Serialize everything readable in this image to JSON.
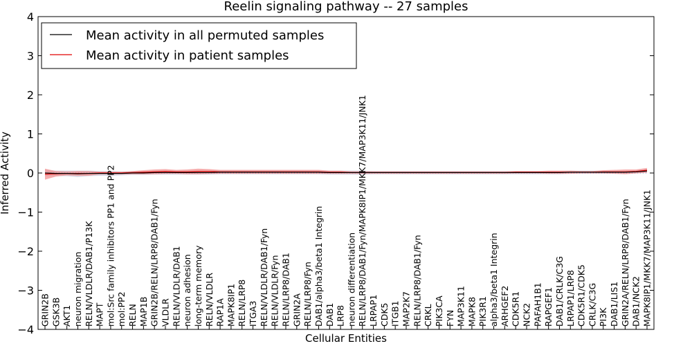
{
  "chart_data": {
    "type": "line",
    "title": "Reelin signaling pathway -- 27 samples",
    "xlabel": "Cellular Entities",
    "ylabel": "Inferred Activity",
    "ylim": [
      -4,
      4
    ],
    "yticks": [
      -4,
      -3,
      -2,
      -1,
      0,
      1,
      2,
      3,
      4
    ],
    "ytick_labels": [
      "−4",
      "−3",
      "−2",
      "−1",
      "0",
      "1",
      "2",
      "3",
      "4"
    ],
    "legend_position": "top-left",
    "categories": [
      "GRIN2B",
      "GSK3B",
      "AKT1",
      "neuron migration",
      "RELN/VLDLR/DAB1/P13K",
      "MAPT",
      "mol:Src family inhibitors PP1 and PP2",
      "mol:PP2",
      "RELN",
      "MAP1B",
      "GRIN2B/RELN/LRP8/DAB1/Fyn",
      "VLDLR",
      "RELN/VLDLR/DAB1",
      "neuron adhesion",
      "long-term memory",
      "RELN/VLDLR",
      "RAP1A",
      "MAPK8IP1",
      "RELN/LRP8",
      "ITGA3",
      "RELN/VLDLR/DAB1/Fyn",
      "RELN/VLDLR/Fyn",
      "RELN/LRP8/DAB1",
      "GRIN2A",
      "RELN/LRP8/Fyn",
      "DAB1/alpha3/beta1 Integrin",
      "DAB1",
      "LRP8",
      "neuron differentiation",
      "RELN/LRP8/DAB1/Fyn/MAPK8IP1/MKK7/MAP3K11/JNK1",
      "LRPAP1",
      "CDK5",
      "ITGB1",
      "MAP2K7",
      "RELN/LRP8/DAB1/Fyn",
      "CRKL",
      "PIK3CA",
      "FYN",
      "MAP3K11",
      "MAPK8",
      "PIK3R1",
      "alpha3/beta1 Integrin",
      "ARHGEF2",
      "CDK5R1",
      "NCK2",
      "PAFAH1B1",
      "RAPGEF1",
      "DAB1/CRLK/C3G",
      "LRPAP1/LRP8",
      "CDK5R1/CDK5",
      "CRLK/C3G",
      "PI3K",
      "DAB1/LIS1",
      "GRIN2A/RELN/LRP8/DAB1/Fyn",
      "DAB1/NCK2",
      "MAPK8IP1/MKK7/MAP3K11/JNK1"
    ],
    "series": [
      {
        "name": "Mean activity in all permuted samples",
        "color": "#000000",
        "band_color": "#c8c8d8",
        "values": [
          0.0,
          -0.01,
          -0.01,
          -0.02,
          -0.01,
          -0.01,
          -0.01,
          -0.01,
          0.0,
          0.0,
          0.01,
          0.01,
          0.01,
          0.01,
          0.01,
          0.01,
          0.02,
          0.02,
          0.02,
          0.02,
          0.02,
          0.02,
          0.02,
          0.02,
          0.02,
          0.02,
          0.01,
          0.01,
          0.01,
          0.01,
          0.01,
          0.01,
          0.01,
          0.01,
          0.01,
          0.01,
          0.01,
          0.01,
          0.01,
          0.01,
          0.01,
          0.01,
          0.01,
          0.01,
          0.01,
          0.01,
          0.01,
          0.01,
          0.02,
          0.02,
          0.02,
          0.02,
          0.02,
          0.02,
          0.03,
          0.05
        ],
        "band": [
          0.08,
          0.07,
          0.07,
          0.08,
          0.07,
          0.06,
          0.06,
          0.05,
          0.05,
          0.05,
          0.05,
          0.05,
          0.05,
          0.05,
          0.05,
          0.05,
          0.05,
          0.05,
          0.05,
          0.05,
          0.05,
          0.05,
          0.05,
          0.05,
          0.05,
          0.05,
          0.05,
          0.05,
          0.05,
          0.05,
          0.04,
          0.04,
          0.04,
          0.04,
          0.04,
          0.04,
          0.04,
          0.04,
          0.04,
          0.04,
          0.04,
          0.04,
          0.04,
          0.04,
          0.04,
          0.04,
          0.04,
          0.04,
          0.04,
          0.04,
          0.04,
          0.04,
          0.04,
          0.04,
          0.04,
          0.05
        ]
      },
      {
        "name": "Mean activity in patient samples",
        "color": "#e00000",
        "band_color": "#f28c8c",
        "values": [
          -0.03,
          -0.02,
          -0.01,
          -0.01,
          -0.01,
          0.0,
          0.0,
          0.0,
          0.01,
          0.02,
          0.03,
          0.04,
          0.03,
          0.03,
          0.04,
          0.04,
          0.03,
          0.03,
          0.03,
          0.03,
          0.03,
          0.03,
          0.03,
          0.03,
          0.03,
          0.03,
          0.02,
          0.02,
          0.01,
          0.01,
          0.01,
          0.01,
          0.01,
          0.01,
          0.01,
          0.01,
          0.01,
          0.01,
          0.01,
          0.01,
          0.01,
          0.01,
          0.01,
          0.02,
          0.02,
          0.02,
          0.02,
          0.02,
          0.02,
          0.02,
          0.02,
          0.03,
          0.03,
          0.03,
          0.04,
          0.07
        ],
        "band": [
          0.14,
          0.07,
          0.05,
          0.06,
          0.06,
          0.03,
          0.03,
          0.03,
          0.04,
          0.05,
          0.06,
          0.06,
          0.05,
          0.06,
          0.07,
          0.06,
          0.05,
          0.05,
          0.05,
          0.05,
          0.05,
          0.05,
          0.05,
          0.05,
          0.05,
          0.05,
          0.04,
          0.04,
          0.03,
          0.03,
          0.03,
          0.03,
          0.03,
          0.03,
          0.03,
          0.03,
          0.03,
          0.03,
          0.03,
          0.03,
          0.03,
          0.03,
          0.03,
          0.03,
          0.03,
          0.03,
          0.04,
          0.04,
          0.04,
          0.03,
          0.03,
          0.04,
          0.05,
          0.06,
          0.05,
          0.06
        ]
      }
    ]
  }
}
